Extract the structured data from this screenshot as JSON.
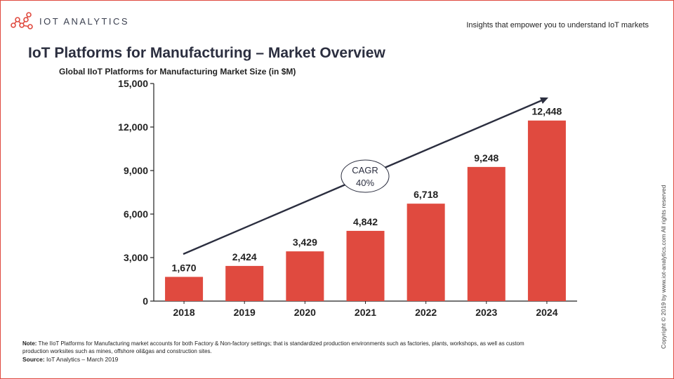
{
  "header": {
    "logo_text": "IOT ANALYTICS",
    "tagline": "Insights that empower you to understand IoT markets"
  },
  "title": "IoT Platforms for Manufacturing – Market Overview",
  "footer": {
    "note_label": "Note:",
    "note_text": "The IIoT Platforms for Manufacturing market accounts for both Factory & Non-factory settings; that is standardized production environments such as factories, plants, workshops, as well as custom production worksites such as mines, offshore oil&gas and construction sites.",
    "source_label": "Source:",
    "source_text": "IoT Analytics – March 2019",
    "copyright": "Copyright © 2019 by www.iot-analytics.com All rights reserved"
  },
  "colors": {
    "bar": "#e04a3f",
    "accent": "#e04a3f",
    "text_dark": "#2b2e3f",
    "arrow": "#2b2e3f"
  },
  "chart_data": {
    "type": "bar",
    "title": "Global IIoT Platforms for Manufacturing Market Size (in $M)",
    "xlabel": "",
    "ylabel": "",
    "categories": [
      "2018",
      "2019",
      "2020",
      "2021",
      "2022",
      "2023",
      "2024"
    ],
    "values": [
      1670,
      2424,
      3429,
      4842,
      6718,
      9248,
      12448
    ],
    "value_labels": [
      "1,670",
      "2,424",
      "3,429",
      "4,842",
      "6,718",
      "9,248",
      "12,448"
    ],
    "ylim": [
      0,
      15000
    ],
    "yticks": [
      0,
      3000,
      6000,
      9000,
      12000,
      15000
    ],
    "ytick_labels": [
      "0",
      "3,000",
      "6,000",
      "9,000",
      "12,000",
      "15,000"
    ],
    "grid": false,
    "annotation": {
      "line1": "CAGR",
      "line2": "40%"
    }
  }
}
